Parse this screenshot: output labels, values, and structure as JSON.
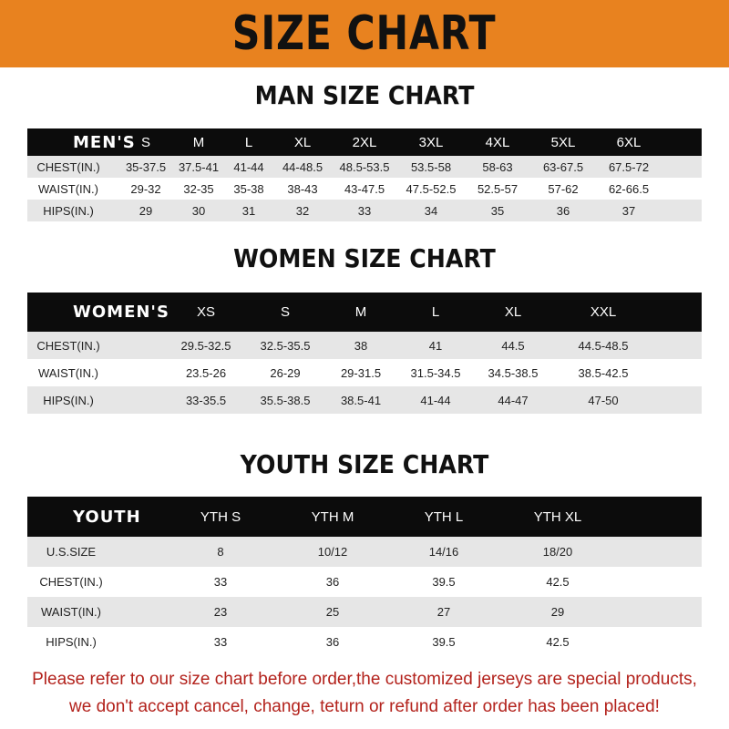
{
  "banner_title": "SIZE CHART",
  "colors": {
    "banner": "#e8821f",
    "header_row": "#0c0c0c",
    "stripe": "#e6e6e6",
    "note": "#b3221c"
  },
  "men": {
    "title": "MAN SIZE CHART",
    "header": [
      "MEN'S",
      "S",
      "M",
      "L",
      "XL",
      "2XL",
      "3XL",
      "4XL",
      "5XL",
      "6XL"
    ],
    "rows": [
      [
        "CHEST(IN.)",
        "35-37.5",
        "37.5-41",
        "41-44",
        "44-48.5",
        "48.5-53.5",
        "53.5-58",
        "58-63",
        "63-67.5",
        "67.5-72"
      ],
      [
        "WAIST(IN.)",
        "29-32",
        "32-35",
        "35-38",
        "38-43",
        "43-47.5",
        "47.5-52.5",
        "52.5-57",
        "57-62",
        "62-66.5"
      ],
      [
        "HIPS(IN.)",
        "29",
        "30",
        "31",
        "32",
        "33",
        "34",
        "35",
        "36",
        "37"
      ]
    ]
  },
  "women": {
    "title": "WOMEN SIZE CHART",
    "header": [
      "WOMEN'S",
      "XS",
      "S",
      "M",
      "L",
      "XL",
      "XXL"
    ],
    "rows": [
      [
        "CHEST(IN.)",
        "29.5-32.5",
        "32.5-35.5",
        "38",
        "41",
        "44.5",
        "44.5-48.5"
      ],
      [
        "WAIST(IN.)",
        "23.5-26",
        "26-29",
        "29-31.5",
        "31.5-34.5",
        "34.5-38.5",
        "38.5-42.5"
      ],
      [
        "HIPS(IN.)",
        "33-35.5",
        "35.5-38.5",
        "38.5-41",
        "41-44",
        "44-47",
        "47-50"
      ]
    ]
  },
  "youth": {
    "title": "YOUTH SIZE CHART",
    "header": [
      "YOUTH",
      "YTH S",
      "YTH M",
      "YTH L",
      "YTH XL"
    ],
    "rows": [
      [
        "U.S.SIZE",
        "8",
        "10/12",
        "14/16",
        "18/20"
      ],
      [
        "CHEST(IN.)",
        "33",
        "36",
        "39.5",
        "42.5"
      ],
      [
        "WAIST(IN.)",
        "23",
        "25",
        "27",
        "29"
      ],
      [
        "HIPS(IN.)",
        "33",
        "36",
        "39.5",
        "42.5"
      ]
    ]
  },
  "note": {
    "line1": "Please refer to our size chart before order,the customized jerseys are special products,",
    "line2": "we don't accept cancel, change, teturn or refund after order has been placed!"
  }
}
